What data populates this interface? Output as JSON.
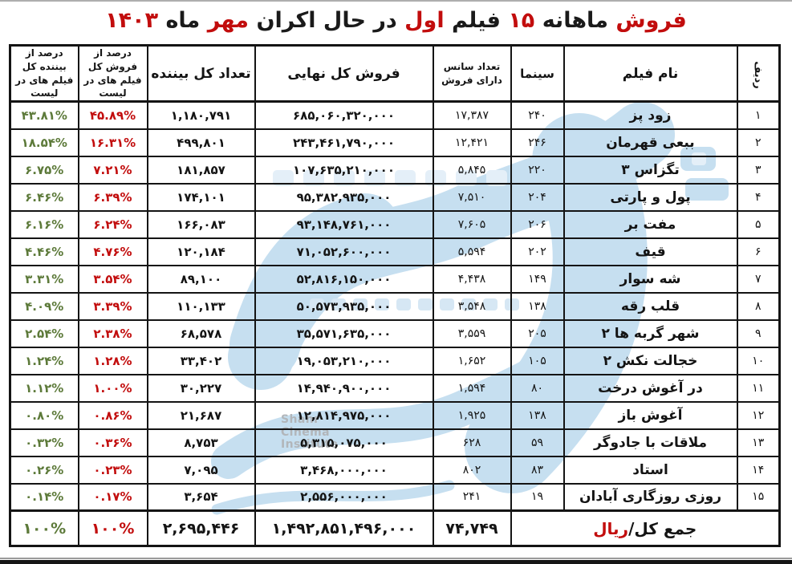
{
  "page": {
    "title_parts": [
      {
        "text": "فروش",
        "red": true
      },
      {
        "text": "ماهانه",
        "red": false
      },
      {
        "text": "۱۵",
        "red": true
      },
      {
        "text": "فیلم",
        "red": false
      },
      {
        "text": "اول",
        "red": true
      },
      {
        "text": "در حال اکران",
        "red": false
      },
      {
        "text": "مهر",
        "red": true
      },
      {
        "text": "ماه",
        "red": false
      },
      {
        "text": "۱۴۰۳",
        "red": true
      }
    ]
  },
  "colors": {
    "red": "#c20d0d",
    "green": "#5d7a3a",
    "watermark_blue": "#c6dff0",
    "watermark_gray": "#b2b6ba"
  },
  "watermark": {
    "lines": [
      "Shahr",
      "Cinema",
      "Institute"
    ]
  },
  "table": {
    "headers": {
      "rank": "ردیف",
      "film": "نام فیلم",
      "cinema": "سینما",
      "sessions_l1": "تعداد سانس",
      "sessions_l2": "دارای فروش",
      "sales": "فروش کل نهایی",
      "viewers": "تعداد کل بیننده",
      "sales_pct_l1": "درصد از فروش کل",
      "sales_pct_l2": "فیلم های در لیست",
      "viewers_pct_l1": "درصد از بیننده کل",
      "viewers_pct_l2": "فیلم های در لیست"
    },
    "rows": [
      {
        "rank": "۱",
        "film": "زود پز",
        "cinema": "۲۴۰",
        "sessions": "۱۷,۳۸۷",
        "sales": "۶۸۵,۰۶۰,۳۲۰,۰۰۰",
        "viewers": "۱,۱۸۰,۷۹۱",
        "sales_pct": "۴۵.۸۹%",
        "viewers_pct": "۴۳.۸۱%"
      },
      {
        "rank": "۲",
        "film": "ببعی قهرمان",
        "cinema": "۲۴۶",
        "sessions": "۱۲,۴۲۱",
        "sales": "۲۴۳,۴۶۱,۷۹۰,۰۰۰",
        "viewers": "۴۹۹,۸۰۱",
        "sales_pct": "۱۶.۳۱%",
        "viewers_pct": "۱۸.۵۴%"
      },
      {
        "rank": "۳",
        "film": "تگزاس ۳",
        "cinema": "۲۲۰",
        "sessions": "۵,۸۴۵",
        "sales": "۱۰۷,۶۳۵,۲۱۰,۰۰۰",
        "viewers": "۱۸۱,۸۵۷",
        "sales_pct": "۷.۲۱%",
        "viewers_pct": "۶.۷۵%"
      },
      {
        "rank": "۴",
        "film": "پول و پارتی",
        "cinema": "۲۰۴",
        "sessions": "۷,۵۱۰",
        "sales": "۹۵,۳۸۲,۹۳۵,۰۰۰",
        "viewers": "۱۷۴,۱۰۱",
        "sales_pct": "۶.۳۹%",
        "viewers_pct": "۶.۴۶%"
      },
      {
        "rank": "۵",
        "film": "مفت بر",
        "cinema": "۲۰۶",
        "sessions": "۷,۶۰۵",
        "sales": "۹۳,۱۴۸,۷۶۱,۰۰۰",
        "viewers": "۱۶۶,۰۸۳",
        "sales_pct": "۶.۲۴%",
        "viewers_pct": "۶.۱۶%"
      },
      {
        "rank": "۶",
        "film": "قیف",
        "cinema": "۲۰۲",
        "sessions": "۵,۵۹۴",
        "sales": "۷۱,۰۵۲,۶۰۰,۰۰۰",
        "viewers": "۱۲۰,۱۸۴",
        "sales_pct": "۴.۷۶%",
        "viewers_pct": "۴.۴۶%"
      },
      {
        "rank": "۷",
        "film": "شه سوار",
        "cinema": "۱۴۹",
        "sessions": "۴,۴۳۸",
        "sales": "۵۲,۸۱۶,۱۵۰,۰۰۰",
        "viewers": "۸۹,۱۰۰",
        "sales_pct": "۳.۵۴%",
        "viewers_pct": "۳.۳۱%"
      },
      {
        "rank": "۸",
        "film": "قلب رقه",
        "cinema": "۱۳۸",
        "sessions": "۳,۵۴۸",
        "sales": "۵۰,۵۷۳,۹۳۵,۰۰۰",
        "viewers": "۱۱۰,۱۳۳",
        "sales_pct": "۳.۳۹%",
        "viewers_pct": "۴.۰۹%"
      },
      {
        "rank": "۹",
        "film": "شهر گربه ها ۲",
        "cinema": "۲۰۵",
        "sessions": "۳,۵۵۹",
        "sales": "۳۵,۵۷۱,۶۳۵,۰۰۰",
        "viewers": "۶۸,۵۷۸",
        "sales_pct": "۲.۳۸%",
        "viewers_pct": "۲.۵۴%"
      },
      {
        "rank": "۱۰",
        "film": "خجالت نکش ۲",
        "cinema": "۱۰۵",
        "sessions": "۱,۶۵۲",
        "sales": "۱۹,۰۵۳,۲۱۰,۰۰۰",
        "viewers": "۳۳,۴۰۲",
        "sales_pct": "۱.۲۸%",
        "viewers_pct": "۱.۲۴%"
      },
      {
        "rank": "۱۱",
        "film": "در آغوش درخت",
        "cinema": "۸۰",
        "sessions": "۱,۵۹۴",
        "sales": "۱۴,۹۴۰,۹۰۰,۰۰۰",
        "viewers": "۳۰,۲۲۷",
        "sales_pct": "۱.۰۰%",
        "viewers_pct": "۱.۱۲%"
      },
      {
        "rank": "۱۲",
        "film": "آغوش باز",
        "cinema": "۱۳۸",
        "sessions": "۱,۹۲۵",
        "sales": "۱۲,۸۱۴,۹۷۵,۰۰۰",
        "viewers": "۲۱,۶۸۷",
        "sales_pct": "۰.۸۶%",
        "viewers_pct": "۰.۸۰%"
      },
      {
        "rank": "۱۳",
        "film": "ملاقات با جادوگر",
        "cinema": "۵۹",
        "sessions": "۶۲۸",
        "sales": "۵,۳۱۵,۰۷۵,۰۰۰",
        "viewers": "۸,۷۵۳",
        "sales_pct": "۰.۳۶%",
        "viewers_pct": "۰.۳۲%"
      },
      {
        "rank": "۱۴",
        "film": "استاد",
        "cinema": "۸۳",
        "sessions": "۸۰۲",
        "sales": "۳,۴۶۸,۰۰۰,۰۰۰",
        "viewers": "۷,۰۹۵",
        "sales_pct": "۰.۲۳%",
        "viewers_pct": "۰.۲۶%"
      },
      {
        "rank": "۱۵",
        "film": "روزی روزگاری آبادان",
        "cinema": "۱۹",
        "sessions": "۲۴۱",
        "sales": "۲,۵۵۶,۰۰۰,۰۰۰",
        "viewers": "۳,۶۵۴",
        "sales_pct": "۰.۱۷%",
        "viewers_pct": "۰.۱۴%"
      }
    ],
    "total": {
      "label_black": "جمع کل/",
      "label_red": "ریال",
      "sessions": "۷۴,۷۴۹",
      "sales": "۱,۴۹۲,۸۵۱,۴۹۶,۰۰۰",
      "viewers": "۲,۶۹۵,۴۴۶",
      "sales_pct": "۱۰۰%",
      "viewers_pct": "۱۰۰%"
    }
  }
}
